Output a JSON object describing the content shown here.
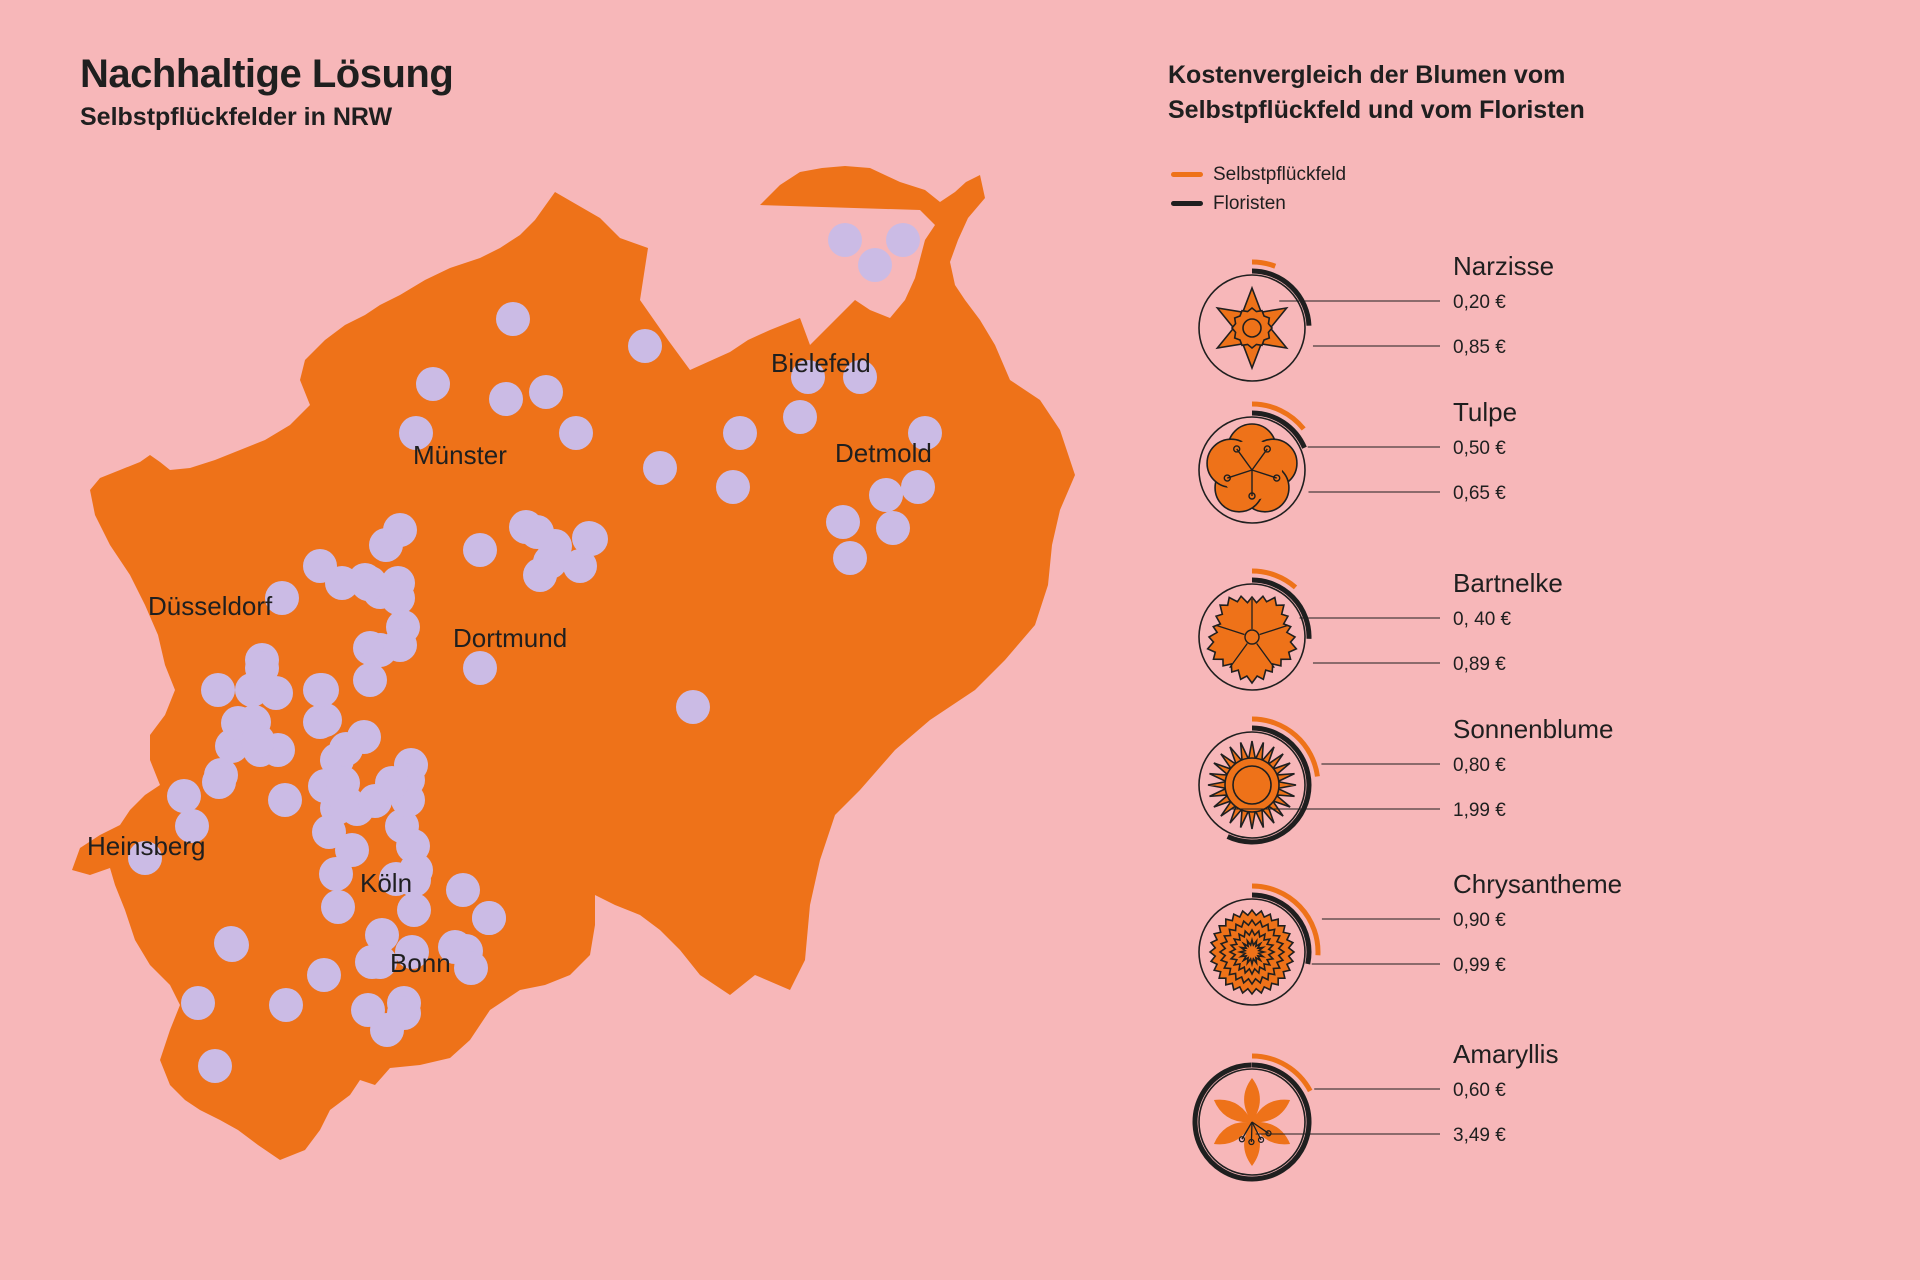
{
  "header": {
    "title": "Nachhaltige Lösung",
    "subtitle": "Selbstpflückfelder in NRW"
  },
  "map": {
    "region_color": "#ee7219",
    "field_color": "#cbbbe5",
    "cities": [
      {
        "name": "Münster"
      },
      {
        "name": "Bielefeld"
      },
      {
        "name": "Detmold"
      },
      {
        "name": "Düsseldorf"
      },
      {
        "name": "Dortmund"
      },
      {
        "name": "Heinsberg"
      },
      {
        "name": "Köln"
      },
      {
        "name": "Bonn"
      }
    ]
  },
  "comparison": {
    "title_line1": "Kostenvergleich der Blumen vom",
    "title_line2": "Selbstpflückfeld und vom Floristen",
    "legend": [
      {
        "label": "Selbstpflückfeld",
        "color": "#ee7219"
      },
      {
        "label": "Floristen",
        "color": "#1f1f1f"
      }
    ],
    "flowers": [
      {
        "name": "Narzisse",
        "icon": "daffodil-icon",
        "selbst_label": "0,20 €",
        "florist_label": "0,85 €",
        "selbst": 0.2,
        "florist": 0.85
      },
      {
        "name": "Tulpe",
        "icon": "tulip-icon",
        "selbst_label": "0,50 €",
        "florist_label": "0,65 €",
        "selbst": 0.5,
        "florist": 0.65
      },
      {
        "name": "Bartnelke",
        "icon": "sweet-william-icon",
        "selbst_label": "0, 40 €",
        "florist_label": "0,89 €",
        "selbst": 0.4,
        "florist": 0.89
      },
      {
        "name": "Sonnenblume",
        "icon": "sunflower-icon",
        "selbst_label": "0,80 €",
        "florist_label": "1,99 €",
        "selbst": 0.8,
        "florist": 1.99
      },
      {
        "name": "Chrysantheme",
        "icon": "chrysanthemum-icon",
        "selbst_label": "0,90 €",
        "florist_label": "0,99 €",
        "selbst": 0.9,
        "florist": 0.99
      },
      {
        "name": "Amaryllis",
        "icon": "amaryllis-icon",
        "selbst_label": "0,60 €",
        "florist_label": "3,49 €",
        "selbst": 0.6,
        "florist": 3.49
      }
    ]
  }
}
